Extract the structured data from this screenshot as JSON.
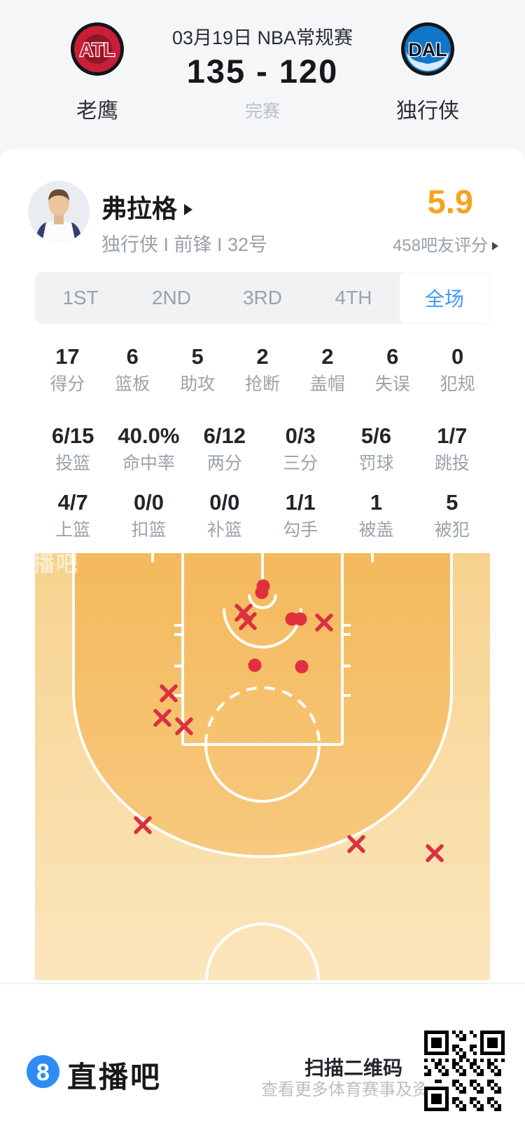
{
  "header": {
    "date": "03月19日 NBA常规赛",
    "score": "135 - 120",
    "status": "完赛",
    "home": {
      "abbr": "ATL",
      "name": "老鹰"
    },
    "away": {
      "abbr": "DAL",
      "name": "独行侠"
    }
  },
  "player": {
    "name": "弗拉格",
    "info": "独行侠 I 前锋 I 32号",
    "rating": "5.9",
    "rating_sub": "458吧友评分"
  },
  "tabs": [
    {
      "label": "1ST"
    },
    {
      "label": "2ND"
    },
    {
      "label": "3RD"
    },
    {
      "label": "4TH"
    },
    {
      "label": "全场"
    }
  ],
  "stats": {
    "row1": [
      {
        "v": "17",
        "l": "得分"
      },
      {
        "v": "6",
        "l": "篮板"
      },
      {
        "v": "5",
        "l": "助攻"
      },
      {
        "v": "2",
        "l": "抢断"
      },
      {
        "v": "2",
        "l": "盖帽"
      },
      {
        "v": "6",
        "l": "失误"
      },
      {
        "v": "0",
        "l": "犯规"
      }
    ],
    "row2": [
      {
        "v": "6/15",
        "l": "投篮"
      },
      {
        "v": "40.0%",
        "l": "命中率"
      },
      {
        "v": "6/12",
        "l": "两分"
      },
      {
        "v": "0/3",
        "l": "三分"
      },
      {
        "v": "5/6",
        "l": "罚球"
      },
      {
        "v": "1/7",
        "l": "跳投"
      }
    ],
    "row3": [
      {
        "v": "4/7",
        "l": "上篮"
      },
      {
        "v": "0/0",
        "l": "扣篮"
      },
      {
        "v": "0/0",
        "l": "补篮"
      },
      {
        "v": "1/1",
        "l": "勾手"
      },
      {
        "v": "1",
        "l": "被盖"
      },
      {
        "v": "5",
        "l": "被犯"
      }
    ]
  },
  "chart_data": {
    "type": "scatter",
    "title": "shot chart (half court)",
    "legend": {
      "made": "red dot",
      "missed": "red x"
    },
    "court_size": [
      650,
      609
    ],
    "made": [
      [
        326,
        47
      ],
      [
        324,
        56
      ],
      [
        367,
        94
      ],
      [
        379,
        94
      ],
      [
        314,
        160
      ],
      [
        381,
        162
      ]
    ],
    "missed": [
      [
        298,
        85
      ],
      [
        304,
        97
      ],
      [
        413,
        99
      ],
      [
        191,
        200
      ],
      [
        182,
        235
      ],
      [
        213,
        247
      ],
      [
        154,
        388
      ],
      [
        459,
        415
      ],
      [
        571,
        428
      ]
    ],
    "colors": {
      "made": "#e0303f",
      "missed": "#d93140",
      "court_inner": "#f5bd64",
      "court_outer_top": "#f7d28e",
      "court_outer_bottom": "#fbe6bc",
      "lines": "#ffffff"
    }
  },
  "watermark": "直播吧",
  "footer": {
    "brand": "直播吧",
    "logo_glyph": "8",
    "qr_title": "扫描二维码",
    "qr_sub": "查看更多体育赛事及资讯"
  }
}
